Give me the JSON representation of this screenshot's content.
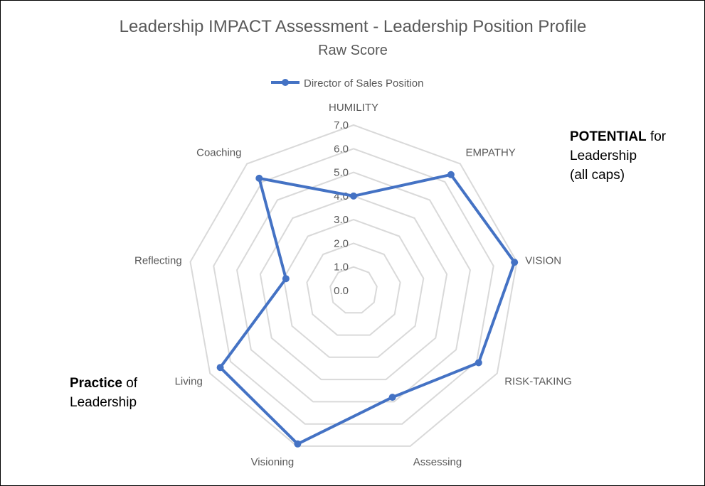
{
  "chart_data": {
    "type": "radar",
    "title": "Leadership IMPACT Assessment - Leadership Position Profile",
    "subtitle": "Raw Score",
    "categories": [
      "HUMILITY",
      "EMPATHY",
      "VISION",
      "RISK-TAKING",
      "Assessing",
      "Visioning",
      "Living",
      "Reflecting",
      "Coaching"
    ],
    "series": [
      {
        "name": "Director of Sales Position",
        "values": [
          4.0,
          6.4,
          6.9,
          6.1,
          4.8,
          6.9,
          6.5,
          2.9,
          6.2
        ],
        "color": "#4472C4"
      }
    ],
    "rlim": [
      0,
      7
    ],
    "ticks": [
      "0.0",
      "1.0",
      "2.0",
      "3.0",
      "4.0",
      "5.0",
      "6.0",
      "7.0"
    ],
    "grid": true,
    "legend_position": "top",
    "grid_color": "#D9D9D9"
  },
  "notes": {
    "potential": {
      "bold": "POTENTIAL",
      "line1_rest": " for",
      "line2": "Leadership",
      "line3": "(all caps)"
    },
    "practice": {
      "bold": "Practice",
      "line1_rest": " of",
      "line2": "Leadership"
    }
  }
}
